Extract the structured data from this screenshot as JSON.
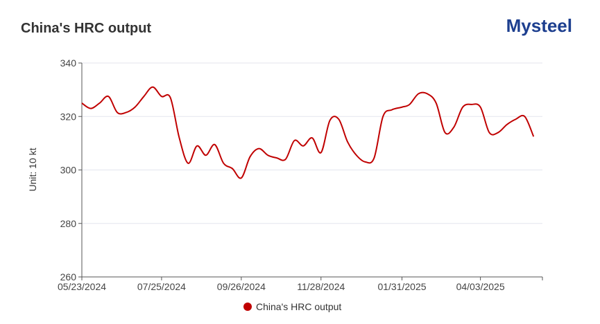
{
  "brand": "Mysteel",
  "chart_data": {
    "type": "line",
    "title": "China's HRC output",
    "y_label": "Unit: 10 kt",
    "x": [
      "05/23/2024",
      "05/30/2024",
      "06/06/2024",
      "06/13/2024",
      "06/20/2024",
      "06/27/2024",
      "07/04/2024",
      "07/11/2024",
      "07/18/2024",
      "07/25/2024",
      "08/01/2024",
      "08/08/2024",
      "08/15/2024",
      "08/22/2024",
      "08/29/2024",
      "09/05/2024",
      "09/12/2024",
      "09/19/2024",
      "09/26/2024",
      "10/03/2024",
      "10/10/2024",
      "10/17/2024",
      "10/24/2024",
      "10/31/2024",
      "11/07/2024",
      "11/14/2024",
      "11/21/2024",
      "11/28/2024",
      "12/05/2024",
      "12/12/2024",
      "12/19/2024",
      "12/26/2024",
      "01/02/2025",
      "01/09/2025",
      "01/16/2025",
      "01/23/2025",
      "01/31/2025",
      "02/06/2025",
      "02/13/2025",
      "02/20/2025",
      "02/27/2025",
      "03/06/2025",
      "03/13/2025",
      "03/20/2025",
      "03/27/2025",
      "04/03/2025",
      "04/10/2025",
      "04/17/2025",
      "04/24/2025",
      "05/01/2025",
      "05/08/2025",
      "05/15/2025"
    ],
    "series": [
      {
        "name": "China's HRC output",
        "color": "#c00000",
        "values": [
          325,
          323,
          325,
          327.5,
          321.5,
          321.5,
          323.5,
          327.5,
          331,
          327.5,
          327,
          312,
          302.5,
          309,
          305.5,
          309.5,
          302.5,
          300.5,
          297,
          305,
          308,
          305.5,
          304.5,
          304,
          311,
          309,
          312,
          306.5,
          318.5,
          319,
          310.5,
          305.5,
          303,
          304.5,
          320,
          322.5,
          323.5,
          324.5,
          328.5,
          328.5,
          325,
          314,
          316,
          323.5,
          324.5,
          323.5,
          314,
          314,
          317,
          319,
          320,
          312.5
        ]
      }
    ],
    "xlim": [
      "05/23/2024",
      "05/22/2025"
    ],
    "xticks": [
      "05/23/2024",
      "07/25/2024",
      "09/26/2024",
      "11/28/2024",
      "01/31/2025",
      "04/03/2025"
    ],
    "ylim": [
      260,
      340
    ],
    "yticks": [
      260,
      280,
      300,
      320,
      340
    ],
    "grid": true
  }
}
